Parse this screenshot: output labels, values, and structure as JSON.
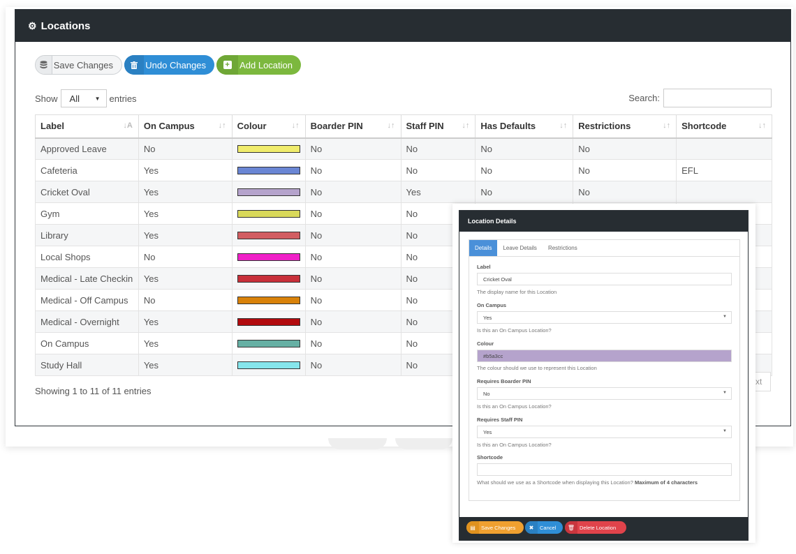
{
  "panel": {
    "title": "Locations"
  },
  "toolbar": {
    "save_label": "Save Changes",
    "undo_label": "Undo Changes",
    "add_label": "Add Location"
  },
  "length": {
    "show": "Show",
    "value": "All",
    "entries": "entries"
  },
  "search": {
    "label": "Search:",
    "value": ""
  },
  "table": {
    "headers": [
      "Label",
      "On Campus",
      "Colour",
      "Boarder PIN",
      "Staff PIN",
      "Has Defaults",
      "Restrictions",
      "Shortcode"
    ],
    "rows": [
      {
        "label": "Approved Leave",
        "on_campus": "No",
        "colour": "#f0ec6c",
        "boarder_pin": "No",
        "staff_pin": "No",
        "has_defaults": "No",
        "restrictions": "No",
        "shortcode": ""
      },
      {
        "label": "Cafeteria",
        "on_campus": "Yes",
        "colour": "#6a86d4",
        "boarder_pin": "No",
        "staff_pin": "No",
        "has_defaults": "No",
        "restrictions": "No",
        "shortcode": "EFL"
      },
      {
        "label": "Cricket Oval",
        "on_campus": "Yes",
        "colour": "#b5a3cc",
        "boarder_pin": "No",
        "staff_pin": "Yes",
        "has_defaults": "No",
        "restrictions": "No",
        "shortcode": ""
      },
      {
        "label": "Gym",
        "on_campus": "Yes",
        "colour": "#d9d95a",
        "boarder_pin": "No",
        "staff_pin": "No",
        "has_defaults": "",
        "restrictions": "",
        "shortcode": ""
      },
      {
        "label": "Library",
        "on_campus": "Yes",
        "colour": "#d25e62",
        "boarder_pin": "No",
        "staff_pin": "No",
        "has_defaults": "",
        "restrictions": "",
        "shortcode": ""
      },
      {
        "label": "Local Shops",
        "on_campus": "No",
        "colour": "#f020c8",
        "boarder_pin": "No",
        "staff_pin": "No",
        "has_defaults": "",
        "restrictions": "",
        "shortcode": ""
      },
      {
        "label": "Medical - Late Checkin",
        "on_campus": "Yes",
        "colour": "#c8303a",
        "boarder_pin": "No",
        "staff_pin": "No",
        "has_defaults": "",
        "restrictions": "",
        "shortcode": ""
      },
      {
        "label": "Medical - Off Campus",
        "on_campus": "No",
        "colour": "#d9820a",
        "boarder_pin": "No",
        "staff_pin": "No",
        "has_defaults": "",
        "restrictions": "",
        "shortcode": ""
      },
      {
        "label": "Medical - Overnight",
        "on_campus": "Yes",
        "colour": "#b20a0e",
        "boarder_pin": "No",
        "staff_pin": "No",
        "has_defaults": "",
        "restrictions": "",
        "shortcode": ""
      },
      {
        "label": "On Campus",
        "on_campus": "Yes",
        "colour": "#66b0a4",
        "boarder_pin": "No",
        "staff_pin": "No",
        "has_defaults": "",
        "restrictions": "",
        "shortcode": ""
      },
      {
        "label": "Study Hall",
        "on_campus": "Yes",
        "colour": "#86e6ec",
        "boarder_pin": "No",
        "staff_pin": "No",
        "has_defaults": "",
        "restrictions": "",
        "shortcode": ""
      }
    ]
  },
  "footer": {
    "showing": "Showing 1 to 11 of 11 entries",
    "next_partial": "xt"
  },
  "modal": {
    "title": "Location Details",
    "tabs": [
      "Details",
      "Leave Details",
      "Restrictions"
    ],
    "fields": {
      "label": {
        "label": "Label",
        "value": "Cricket Oval",
        "help": "The display name for this Location"
      },
      "on_campus": {
        "label": "On Campus",
        "value": "Yes",
        "help": "Is this an On Campus Location?"
      },
      "colour": {
        "label": "Colour",
        "value": "#b5a3cc",
        "help": "The colour should we use to represent this Location"
      },
      "boarder_pin": {
        "label": "Requires Boarder PIN",
        "value": "No",
        "help": "Is this an On Campus Location?"
      },
      "staff_pin": {
        "label": "Requires Staff PIN",
        "value": "Yes",
        "help": "Is this an On Campus Location?"
      },
      "shortcode": {
        "label": "Shortcode",
        "value": "",
        "help": "What should we use as a Shortcode when displaying this Location?",
        "help_bold": "Maximum of 4 characters"
      }
    },
    "buttons": {
      "save": "Save Changes",
      "cancel": "Cancel",
      "delete": "Delete Location"
    }
  },
  "colors": {
    "header_bg": "#272d32",
    "primary": "#2f8ed6",
    "success": "#7cb83e",
    "warning": "#f0a030",
    "danger": "#e0434b",
    "tab_active": "#4a90d9"
  },
  "icons": {
    "panel": "gear-icon",
    "save": "database-icon",
    "undo": "trash-icon",
    "add": "plus-square-icon",
    "cancel": "close-icon",
    "delete": "trash-icon"
  }
}
